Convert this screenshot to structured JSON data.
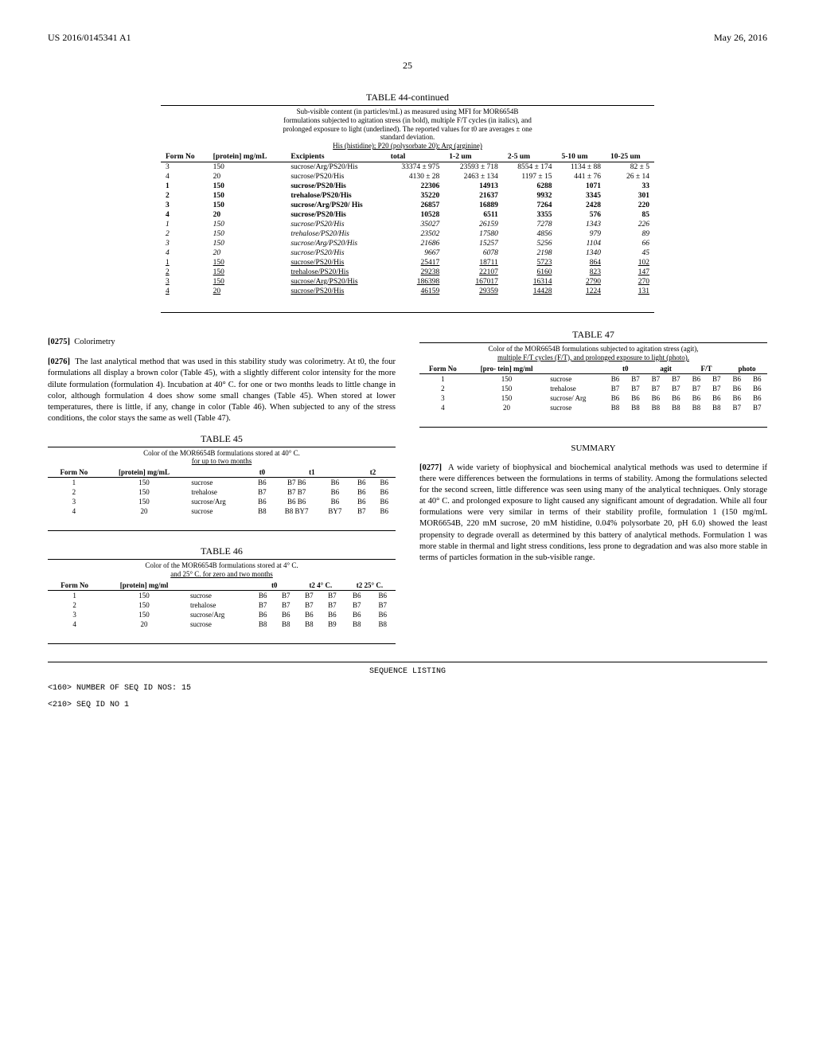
{
  "header": {
    "left": "US 2016/0145341 A1",
    "right": "May 26, 2016"
  },
  "page_number": "25",
  "table44": {
    "title_cont": "TABLE 44-continued",
    "caption_l1": "Sub-visible content (in particles/mL) as measured using MFI for MOR6654B",
    "caption_l2": "formulations subjected to agitation stress (in bold), multiple F/T cycles (in italics), and",
    "caption_l3": "prolonged exposure to light (underlined). The reported values for t0 are averages ± one",
    "caption_l4": "standard deviation.",
    "caption_l5": "His (histidine); P20 (polysorbate 20); Arg (arginine)",
    "headers": [
      "Form No",
      "[protein] mg/mL",
      "Excipients",
      "total",
      "1-2 um",
      "2-5 um",
      "5-10 um",
      "10-25 um"
    ],
    "rows": [
      {
        "s": "",
        "c": [
          "3",
          "150",
          "sucrose/Arg/PS20/His",
          "33374 ± 975",
          "23593 ± 718",
          "8554 ± 174",
          "1134 ± 88",
          "82 ± 5"
        ]
      },
      {
        "s": "",
        "c": [
          "4",
          "20",
          "sucrose/PS20/His",
          "4130 ± 28",
          "2463 ± 134",
          "1197 ± 15",
          "441 ± 76",
          "26 ± 14"
        ]
      },
      {
        "s": "bold",
        "c": [
          "1",
          "150",
          "sucrose/PS20/His",
          "22306",
          "14913",
          "6288",
          "1071",
          "33"
        ]
      },
      {
        "s": "bold",
        "c": [
          "2",
          "150",
          "trehalose/PS20/His",
          "35220",
          "21637",
          "9932",
          "3345",
          "301"
        ]
      },
      {
        "s": "bold",
        "c": [
          "3",
          "150",
          "sucrose/Arg/PS20/ His",
          "26857",
          "16889",
          "7264",
          "2428",
          "220"
        ]
      },
      {
        "s": "bold",
        "c": [
          "4",
          "20",
          "sucrose/PS20/His",
          "10528",
          "6511",
          "3355",
          "576",
          "85"
        ]
      },
      {
        "s": "ital",
        "c": [
          "1",
          "150",
          "sucrose/PS20/His",
          "35027",
          "26159",
          "7278",
          "1343",
          "226"
        ]
      },
      {
        "s": "ital",
        "c": [
          "2",
          "150",
          "trehalose/PS20/His",
          "23502",
          "17580",
          "4856",
          "979",
          "89"
        ]
      },
      {
        "s": "ital",
        "c": [
          "3",
          "150",
          "sucrose/Arg/PS20/His",
          "21686",
          "15257",
          "5256",
          "1104",
          "66"
        ]
      },
      {
        "s": "ital",
        "c": [
          "4",
          "20",
          "sucrose/PS20/His",
          "9667",
          "6078",
          "2198",
          "1340",
          "45"
        ]
      },
      {
        "s": "ul",
        "c": [
          "1",
          "150",
          "sucrose/PS20/His",
          "25417",
          "18711",
          "5723",
          "864",
          "102"
        ]
      },
      {
        "s": "ul",
        "c": [
          "2",
          "150",
          "trehalose/PS20/His",
          "29238",
          "22107",
          "6160",
          "823",
          "147"
        ]
      },
      {
        "s": "ul",
        "c": [
          "3",
          "150",
          "sucrose/Arg/PS20/His",
          "186398",
          "167017",
          "16314",
          "2790",
          "270"
        ]
      },
      {
        "s": "ul",
        "c": [
          "4",
          "20",
          "sucrose/PS20/His",
          "46159",
          "29359",
          "14428",
          "1224",
          "131"
        ]
      }
    ]
  },
  "para275": {
    "num": "[0275]",
    "text": "Colorimetry"
  },
  "para276": {
    "num": "[0276]",
    "text": "The last analytical method that was used in this stability study was colorimetry. At t0, the four formulations all display a brown color (Table 45), with a slightly different color intensity for the more dilute formulation (formulation 4). Incubation at 40° C. for one or two months leads to little change in color, although formulation 4 does show some small changes (Table 45). When stored at lower temperatures, there is little, if any, change in color (Table 46). When subjected to any of the stress conditions, the color stays the same as well (Table 47)."
  },
  "table45": {
    "title": "TABLE 45",
    "caption_l1": "Color of the MOR6654B formulations stored at 40° C.",
    "caption_l2": "for up to two months",
    "headers": [
      "Form No",
      "[protein] mg/mL",
      "",
      "t0",
      "t1",
      "",
      "t2",
      ""
    ],
    "rows": [
      [
        "1",
        "150",
        "sucrose",
        "B6",
        "B7 B6",
        "B6",
        "B6",
        "B6"
      ],
      [
        "2",
        "150",
        "trehalose",
        "B7",
        "B7 B7",
        "B6",
        "B6",
        "B6"
      ],
      [
        "3",
        "150",
        "sucrose/Arg",
        "B6",
        "B6 B6",
        "B6",
        "B6",
        "B6"
      ],
      [
        "4",
        "20",
        "sucrose",
        "B8",
        "B8 BY7",
        "BY7",
        "B7",
        "B6"
      ]
    ]
  },
  "table46": {
    "title": "TABLE 46",
    "caption_l1": "Color of the MOR6654B formulations stored at 4° C.",
    "caption_l2": "and 25° C. for zero and two months",
    "headers": [
      "Form No",
      "[protein] mg/ml",
      "",
      "t0",
      "",
      "t2 4° C.",
      "",
      "t2 25° C.",
      ""
    ],
    "rows": [
      [
        "1",
        "150",
        "sucrose",
        "B6",
        "B7",
        "B7",
        "B7",
        "B6",
        "B6"
      ],
      [
        "2",
        "150",
        "trehalose",
        "B7",
        "B7",
        "B7",
        "B7",
        "B7",
        "B7"
      ],
      [
        "3",
        "150",
        "sucrose/Arg",
        "B6",
        "B6",
        "B6",
        "B6",
        "B6",
        "B6"
      ],
      [
        "4",
        "20",
        "sucrose",
        "B8",
        "B8",
        "B8",
        "B9",
        "B8",
        "B8"
      ]
    ]
  },
  "table47": {
    "title": "TABLE 47",
    "caption_l1": "Color of the MOR6654B formulations subjected to agitation stress (agit),",
    "caption_l2": "multiple F/T cycles (F/T), and prolonged exposure to light (photo).",
    "headers": [
      "Form No",
      "[pro- tein] mg/ml",
      "",
      "t0",
      "",
      "agit",
      "",
      "F/T",
      "",
      "photo",
      ""
    ],
    "rows": [
      [
        "1",
        "150",
        "sucrose",
        "B6",
        "B7",
        "B7",
        "B7",
        "B6",
        "B7",
        "B6",
        "B6"
      ],
      [
        "2",
        "150",
        "trehalose",
        "B7",
        "B7",
        "B7",
        "B7",
        "B7",
        "B7",
        "B6",
        "B6"
      ],
      [
        "3",
        "150",
        "sucrose/ Arg",
        "B6",
        "B6",
        "B6",
        "B6",
        "B6",
        "B6",
        "B6",
        "B6"
      ],
      [
        "4",
        "20",
        "sucrose",
        "B8",
        "B8",
        "B8",
        "B8",
        "B8",
        "B8",
        "B7",
        "B7"
      ]
    ]
  },
  "summary_head": "SUMMARY",
  "para277": {
    "num": "[0277]",
    "text": "A wide variety of biophysical and biochemical analytical methods was used to determine if there were differences between the formulations in terms of stability. Among the formulations selected for the second screen, little difference was seen using many of the analytical techniques. Only storage at 40° C. and prolonged exposure to light caused any significant amount of degradation. While all four formulations were very similar in terms of their stability profile, formulation 1 (150 mg/mL MOR6654B, 220 mM sucrose, 20 mM histidine, 0.04% polysorbate 20, pH 6.0) showed the least propensity to degrade overall as determined by this battery of analytical methods. Formulation 1 was more stable in thermal and light stress conditions, less prone to degradation and was also more stable in terms of particles formation in the sub-visible range."
  },
  "seq": {
    "title": "SEQUENCE LISTING",
    "l1": "<160> NUMBER OF SEQ ID NOS: 15",
    "l2": "<210> SEQ ID NO 1"
  }
}
